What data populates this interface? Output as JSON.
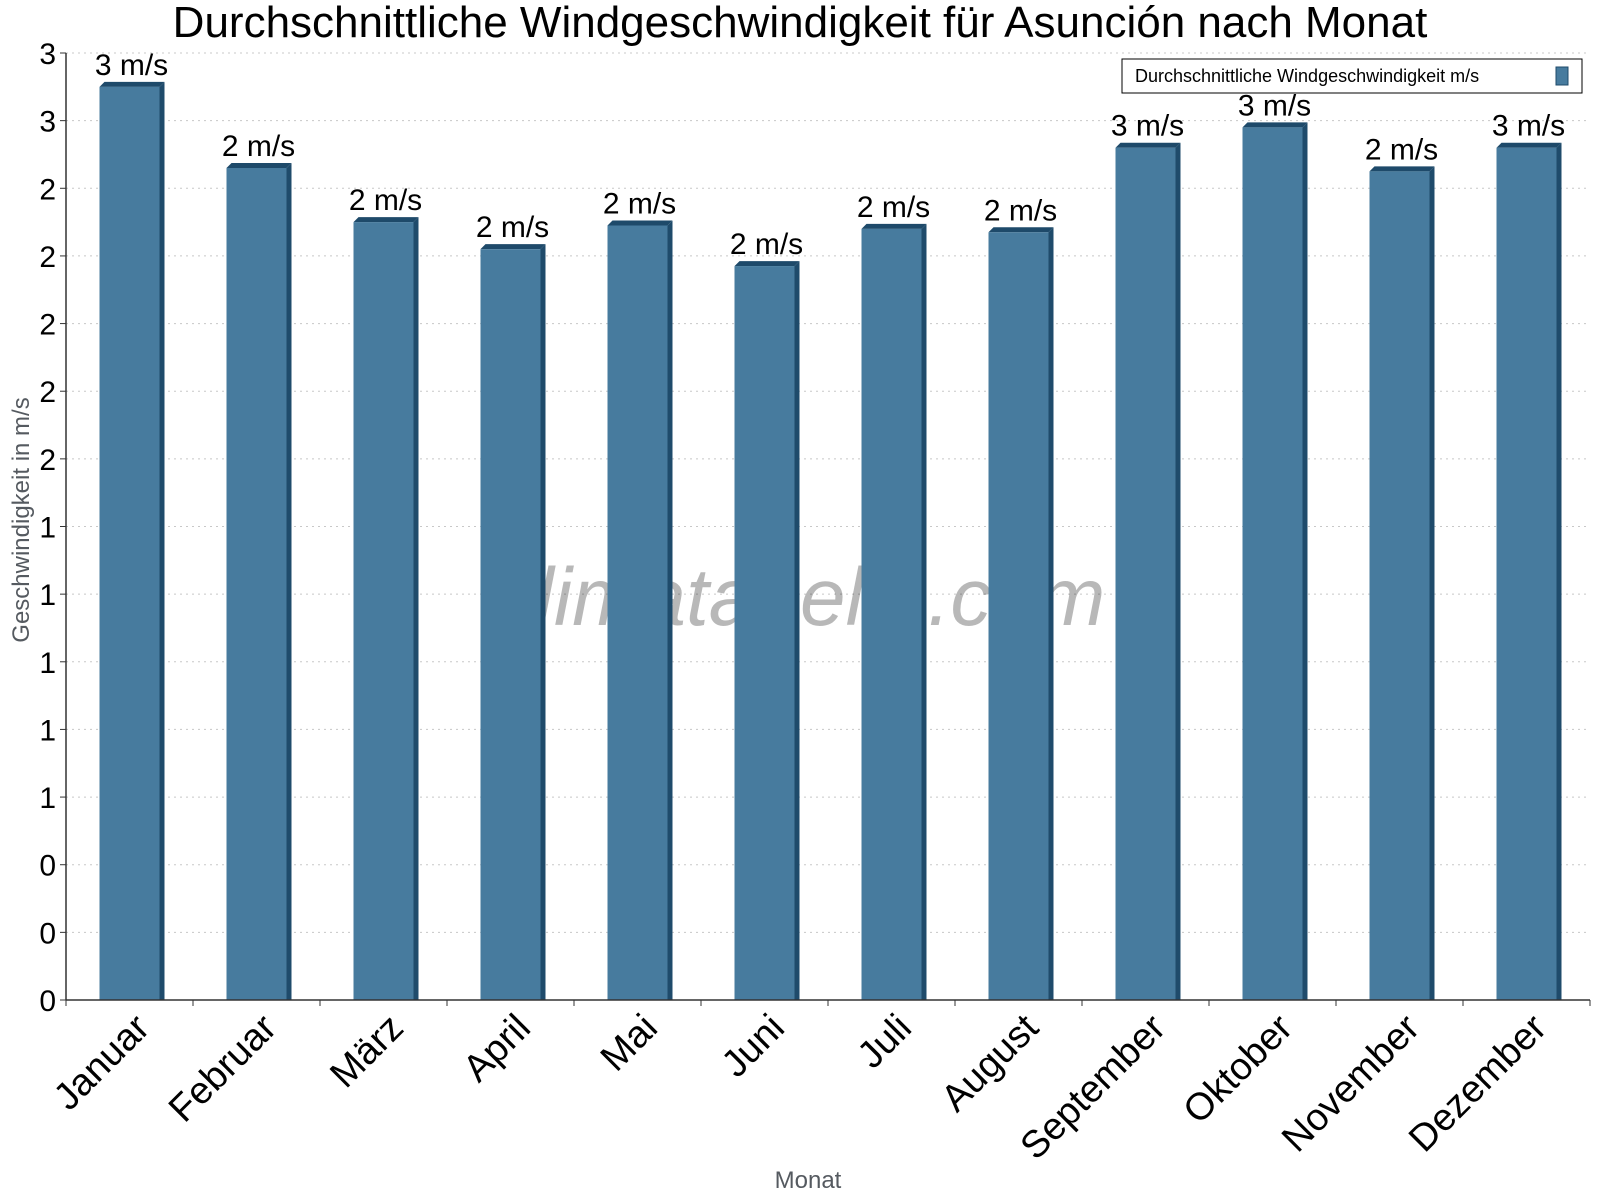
{
  "watermark": "klimatabelle.com",
  "colors": {
    "bar_front": "#477b9e",
    "bar_side": "#1f4b6b",
    "bar_top": "#1e4a6a",
    "grid": "#c8c8c8",
    "axis": "#333333"
  },
  "chart_data": {
    "type": "bar",
    "title": "Durchschnittliche Windgeschwindigkeit für Asunción nach Monat",
    "xlabel": "Monat",
    "ylabel": "Geschwindigkeit in m/s",
    "categories": [
      "Januar",
      "Februar",
      "März",
      "April",
      "Mai",
      "Juni",
      "Juli",
      "August",
      "September",
      "Oktober",
      "November",
      "Dezember"
    ],
    "series": [
      {
        "name": "Durchschnittliche Windgeschwindigkeit m/s",
        "values": [
          2.7,
          2.46,
          2.3,
          2.22,
          2.29,
          2.17,
          2.28,
          2.27,
          2.52,
          2.58,
          2.45,
          2.52
        ],
        "data_labels": [
          "3 m/s",
          "2 m/s",
          "2 m/s",
          "2 m/s",
          "2 m/s",
          "2 m/s",
          "2 m/s",
          "2 m/s",
          "3 m/s",
          "3 m/s",
          "2 m/s",
          "3 m/s"
        ]
      }
    ],
    "ylim": [
      0,
      2.8
    ],
    "yticks": [
      0,
      0.2,
      0.4,
      0.6,
      0.8,
      1.0,
      1.2,
      1.4,
      1.6,
      1.8,
      2.0,
      2.2,
      2.4,
      2.6,
      2.8
    ],
    "ytick_labels": [
      "0",
      "0",
      "0",
      "1",
      "1",
      "1",
      "1",
      "1",
      "2",
      "2",
      "2",
      "2",
      "2",
      "3",
      "3"
    ],
    "grid": true,
    "legend": "top-right"
  }
}
